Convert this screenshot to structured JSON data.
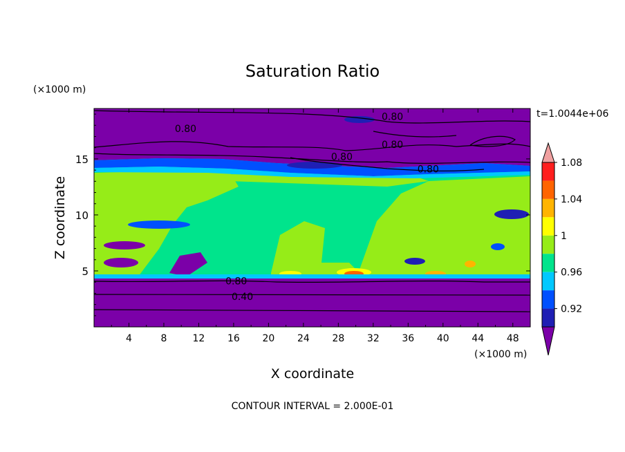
{
  "chart_data": {
    "type": "heatmap",
    "title": "Saturation Ratio",
    "xlabel": "X coordinate",
    "ylabel": "Z coordinate",
    "x_unit": "(×1000 m)",
    "y_unit": "(×1000 m)",
    "time_label": "t=1.0044e+06",
    "footer": "CONTOUR INTERVAL = 2.000E-01",
    "xlim": [
      0,
      50
    ],
    "ylim": [
      0,
      19.5
    ],
    "x_ticks": [
      "4",
      "8",
      "12",
      "16",
      "20",
      "24",
      "28",
      "32",
      "36",
      "40",
      "44",
      "48"
    ],
    "y_ticks": [
      "5",
      "10",
      "15"
    ],
    "colorbar": {
      "labels": [
        "0.92",
        "0.96",
        "1",
        "1.04",
        "1.08"
      ],
      "levels": [
        0.9,
        0.92,
        0.94,
        0.96,
        0.98,
        1.0,
        1.02,
        1.04,
        1.06,
        1.08,
        1.1
      ],
      "colors": [
        "#7b00a8",
        "#1f1fb4",
        "#0050ff",
        "#00c8ff",
        "#00e48c",
        "#96ec18",
        "#ffff00",
        "#ffb400",
        "#ff6400",
        "#ff1e1e",
        "#f0a0a0"
      ],
      "extend": "both"
    },
    "contour_labels": [
      {
        "text": "0.80",
        "x": 10.5,
        "z": 17.7
      },
      {
        "text": "0.80",
        "x": 34.2,
        "z": 18.8
      },
      {
        "text": "0.80",
        "x": 34.2,
        "z": 16.3
      },
      {
        "text": "0.80",
        "x": 28.4,
        "z": 15.2
      },
      {
        "text": "0.80",
        "x": 38.3,
        "z": 14.1
      },
      {
        "text": "0.80",
        "x": 16.3,
        "z": 4.1
      },
      {
        "text": "0.40",
        "x": 17.0,
        "z": 2.7
      }
    ],
    "regions": {
      "upper_dry_layer_value": 0.8,
      "mid_layer_value": 0.99,
      "lower_dry_layer_value": 0.4,
      "boundary_layer_top_z": 4.4,
      "cloud_layer_bottom_z": 14.0
    }
  }
}
